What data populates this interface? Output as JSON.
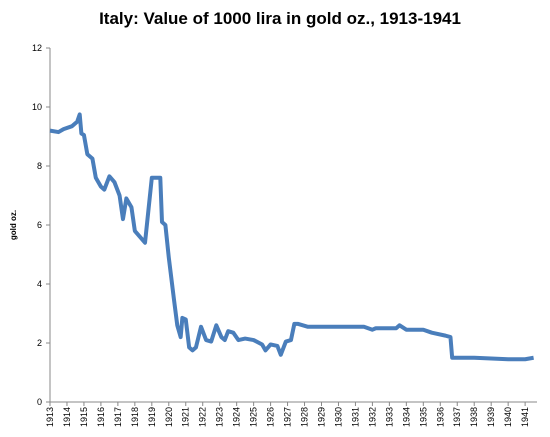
{
  "chart_data": {
    "type": "line",
    "title": "Italy: Value of 1000 lira in gold oz., 1913-1941",
    "y_label": "gold oz.",
    "x": [
      1913.0,
      1913.5,
      1913.8,
      1914.3,
      1914.6,
      1914.75,
      1914.85,
      1915.0,
      1915.2,
      1915.5,
      1915.7,
      1916.0,
      1916.2,
      1916.5,
      1916.8,
      1917.1,
      1917.3,
      1917.5,
      1917.8,
      1918.0,
      1918.3,
      1918.6,
      1918.8,
      1919.0,
      1919.5,
      1919.6,
      1919.8,
      1920.0,
      1920.3,
      1920.5,
      1920.7,
      1920.8,
      1921.0,
      1921.2,
      1921.4,
      1921.6,
      1921.9,
      1922.2,
      1922.5,
      1922.8,
      1923.1,
      1923.3,
      1923.5,
      1923.8,
      1924.1,
      1924.5,
      1925.0,
      1925.5,
      1925.7,
      1926.0,
      1926.4,
      1926.6,
      1926.9,
      1927.2,
      1927.4,
      1927.6,
      1928.2,
      1930.0,
      1931.5,
      1932.0,
      1932.2,
      1933.4,
      1933.6,
      1934.0,
      1935.0,
      1935.5,
      1936.3,
      1936.6,
      1936.7,
      1938.0,
      1940.0,
      1941.0,
      1941.5
    ],
    "series": [
      {
        "name": "gold oz.",
        "color": "#4a7ebb",
        "values": [
          9.2,
          9.15,
          9.25,
          9.35,
          9.5,
          9.75,
          9.1,
          9.05,
          8.4,
          8.25,
          7.6,
          7.3,
          7.2,
          7.65,
          7.45,
          7.0,
          6.2,
          6.9,
          6.6,
          5.8,
          5.6,
          5.4,
          6.5,
          7.6,
          7.6,
          6.1,
          6.0,
          4.9,
          3.5,
          2.6,
          2.2,
          2.85,
          2.8,
          1.85,
          1.75,
          1.85,
          2.55,
          2.1,
          2.05,
          2.6,
          2.2,
          2.1,
          2.4,
          2.35,
          2.1,
          2.15,
          2.1,
          1.95,
          1.75,
          1.95,
          1.9,
          1.6,
          2.05,
          2.1,
          2.65,
          2.65,
          2.55,
          2.55,
          2.55,
          2.45,
          2.5,
          2.5,
          2.6,
          2.45,
          2.45,
          2.35,
          2.25,
          2.2,
          1.5,
          1.5,
          1.45,
          1.45,
          1.5
        ]
      }
    ],
    "xlim": [
      1913,
      1941.7
    ],
    "xticks": [
      1913,
      1914,
      1915,
      1916,
      1917,
      1918,
      1919,
      1920,
      1921,
      1922,
      1923,
      1924,
      1925,
      1926,
      1927,
      1928,
      1929,
      1930,
      1931,
      1932,
      1933,
      1934,
      1935,
      1936,
      1937,
      1938,
      1939,
      1940,
      1941
    ],
    "ylim": [
      0,
      12
    ],
    "yticks": [
      0,
      2,
      4,
      6,
      8,
      10,
      12
    ],
    "grid": false
  }
}
